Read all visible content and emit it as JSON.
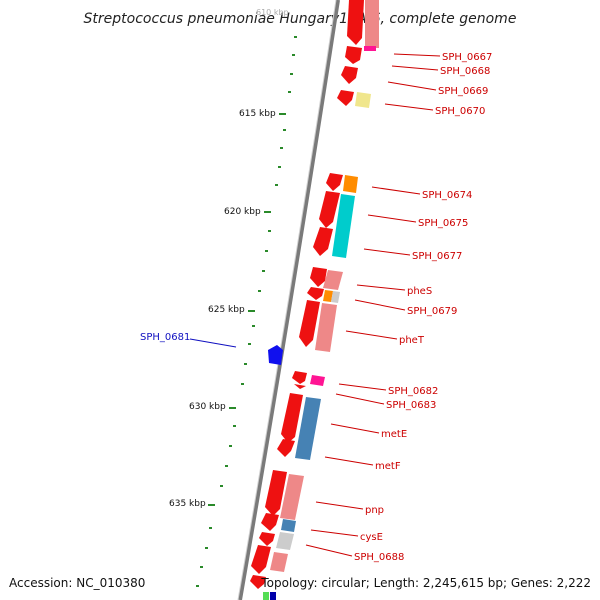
{
  "title": "Streptococcus pneumoniae Hungary19A-6, complete genome",
  "footer": {
    "accession": "Accession: NC_010380",
    "summary": "Topology: circular; Length: 2,245,615 bp; Genes: 2,222"
  },
  "colors": {
    "backbone": "#7a7a7a",
    "tick": "#2a8a2a",
    "gene_forward": "#ee1111",
    "gene_label": "#cc0000",
    "gene_label_alt": "#1010c0",
    "highlight_gene": "#1010ee",
    "cog_pink": "#ee8888",
    "cog_orange": "#ff8c00",
    "cog_cyan": "#00cccc",
    "cog_steelblue": "#4682b4",
    "cog_magenta": "#ff1493",
    "cog_khaki": "#f0e68c",
    "cog_grey": "#cccccc"
  },
  "kbp_labels": [
    {
      "text": "610 kbp",
      "faded": true
    },
    {
      "text": "615 kbp"
    },
    {
      "text": "620 kbp"
    },
    {
      "text": "625 kbp"
    },
    {
      "text": "630 kbp"
    },
    {
      "text": "635 kbp"
    }
  ],
  "gene_labels": [
    "SPH_0667",
    "SPH_0668",
    "SPH_0669",
    "SPH_0670",
    "SPH_0674",
    "SPH_0675",
    "SPH_0677",
    "pheS",
    "SPH_0679",
    "pheT",
    "SPH_0681",
    "SPH_0682",
    "SPH_0683",
    "metE",
    "metF",
    "pnp",
    "cysE",
    "SPH_0688"
  ]
}
